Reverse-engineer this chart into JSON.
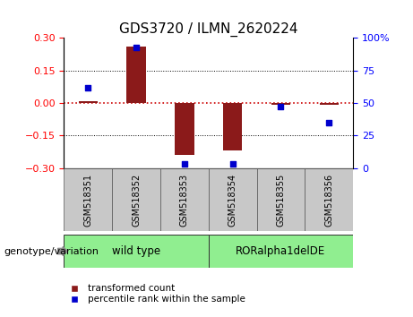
{
  "title": "GDS3720 / ILMN_2620224",
  "samples": [
    "GSM518351",
    "GSM518352",
    "GSM518353",
    "GSM518354",
    "GSM518355",
    "GSM518356"
  ],
  "transformed_count": [
    0.01,
    0.26,
    -0.24,
    -0.22,
    -0.01,
    -0.01
  ],
  "percentile_rank_pct": [
    62,
    93,
    3,
    3,
    47,
    35
  ],
  "ylim_left": [
    -0.3,
    0.3
  ],
  "ylim_right": [
    0,
    100
  ],
  "yticks_left": [
    -0.3,
    -0.15,
    0,
    0.15,
    0.3
  ],
  "yticks_right": [
    0,
    25,
    50,
    75,
    100
  ],
  "bar_color": "#8B1A1A",
  "dot_color": "#0000CD",
  "zero_line_color": "#CC0000",
  "grid_color": "#000000",
  "group_colors": [
    "#90EE90",
    "#90EE90"
  ],
  "group_labels": [
    "wild type",
    "RORalpha1delDE"
  ],
  "group_label": "genotype/variation",
  "legend_bar_label": "transformed count",
  "legend_dot_label": "percentile rank within the sample",
  "title_fontsize": 11,
  "tick_fontsize": 8,
  "label_fontsize": 8.5
}
